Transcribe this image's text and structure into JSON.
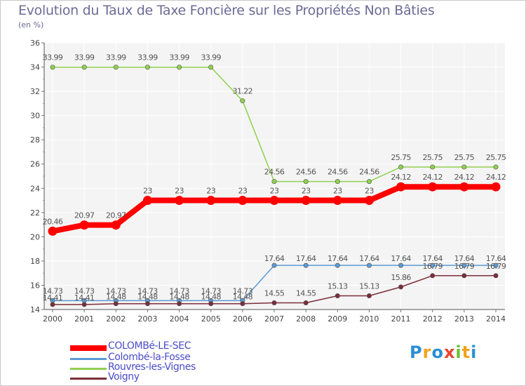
{
  "title": "Evolution du Taux de Taxe Foncière sur les Propriétés Non Bâties",
  "subtitle": "(en %)",
  "logo": {
    "text": "Proxiti",
    "colors": [
      "#2a8fd6",
      "#f4a21b",
      "#2a8fd6",
      "#e8442f",
      "#6bbf2f",
      "#f4a21b",
      "#2a8fd6"
    ]
  },
  "chart_data": {
    "type": "line",
    "x": [
      2000,
      2001,
      2002,
      2003,
      2004,
      2005,
      2006,
      2007,
      2008,
      2009,
      2010,
      2011,
      2012,
      2013,
      2014
    ],
    "ylim": [
      14,
      36
    ],
    "yticks": [
      14,
      16,
      18,
      20,
      22,
      24,
      26,
      28,
      30,
      32,
      34,
      36
    ],
    "grid": true,
    "series": [
      {
        "name": "COLOMBé-LE-SEC",
        "color": "#ff0000",
        "values": [
          20.46,
          20.97,
          20.97,
          23,
          23,
          23,
          23,
          23,
          23,
          23,
          23,
          24.12,
          24.12,
          24.12,
          24.12
        ],
        "labels": [
          "20.46",
          "20.97",
          "20.97",
          "23",
          "23",
          "23",
          "23",
          "23",
          "23",
          "23",
          "23",
          "24.12",
          "24.12",
          "24.12",
          "24.12"
        ]
      },
      {
        "name": "Colombé-la-Fosse",
        "color": "#5b9bd5",
        "values": [
          14.73,
          14.73,
          14.73,
          14.73,
          14.73,
          14.73,
          14.73,
          17.64,
          17.64,
          17.64,
          17.64,
          17.64,
          17.64,
          17.64,
          17.64
        ],
        "labels": [
          "14.73",
          "14.73",
          "14.73",
          "14.73",
          "14.73",
          "14.73",
          "14.73",
          "17.64",
          "17.64",
          "17.64",
          "17.64",
          "17.64",
          "17.64",
          "17.64",
          "17.64"
        ]
      },
      {
        "name": "Rouvres-les-Vignes",
        "color": "#8fd14f",
        "values": [
          33.99,
          33.99,
          33.99,
          33.99,
          33.99,
          33.99,
          31.22,
          24.56,
          24.56,
          24.56,
          24.56,
          25.75,
          25.75,
          25.75,
          25.75
        ],
        "labels": [
          "33.99",
          "33.99",
          "33.99",
          "33.99",
          "33.99",
          "33.99",
          "31.22",
          "24.56",
          "24.56",
          "24.56",
          "24.56",
          "25.75",
          "25.75",
          "25.75",
          "25.75"
        ]
      },
      {
        "name": "Voigny",
        "color": "#7b2d3a",
        "values": [
          14.41,
          14.41,
          14.48,
          14.48,
          14.48,
          14.48,
          14.48,
          14.55,
          14.55,
          15.13,
          15.13,
          15.86,
          16.79,
          16.79,
          16.79
        ],
        "labels": [
          "14.41",
          "14.41",
          "14.48",
          "14.48",
          "14.48",
          "14.48",
          "14.48",
          "14.55",
          "14.55",
          "15.13",
          "15.13",
          "15.86",
          "16.79",
          "16.79",
          "16.79"
        ]
      }
    ]
  }
}
